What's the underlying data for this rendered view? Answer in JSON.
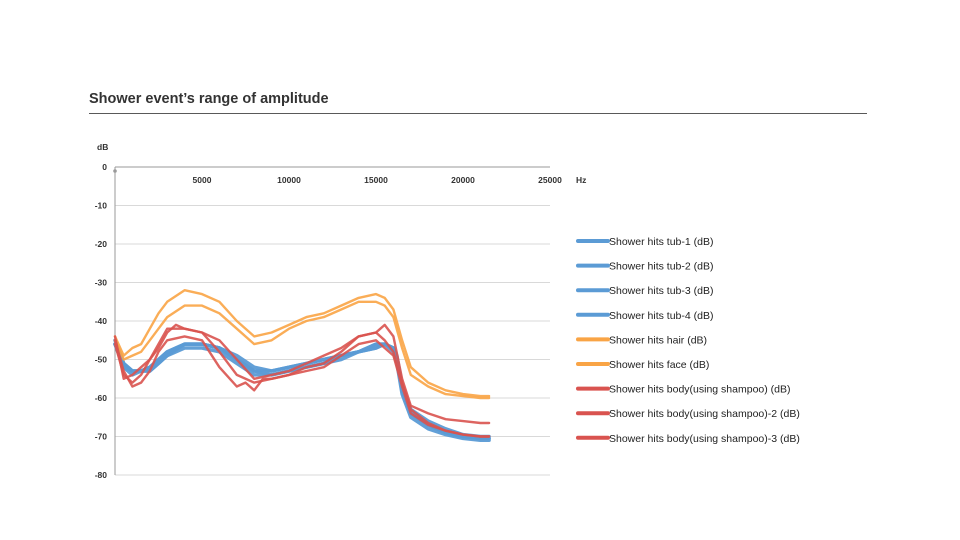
{
  "slide": {
    "title": "Shower event’s range of amplitude"
  },
  "chart_data": {
    "type": "line",
    "title": "",
    "xlabel": "Hz",
    "ylabel": "dB",
    "xlim": [
      0,
      25000
    ],
    "ylim": [
      -80,
      0
    ],
    "xticks": [
      5000,
      10000,
      15000,
      20000,
      25000
    ],
    "yticks": [
      0,
      -10,
      -20,
      -30,
      -40,
      -50,
      -60,
      -70,
      -80
    ],
    "grid": true,
    "legend_position": "right",
    "series": [
      {
        "name": "Shower hits tub-1 (dB)",
        "color": "#5B9BD5",
        "x": [
          0,
          500,
          1000,
          1500,
          2000,
          2500,
          3000,
          4000,
          5000,
          6000,
          7000,
          8000,
          9000,
          10000,
          11000,
          12000,
          13000,
          14000,
          15000,
          15500,
          16000,
          16200,
          16500,
          17000,
          18000,
          19000,
          20000,
          21000,
          21500
        ],
        "values": [
          -46,
          -52,
          -53,
          -53,
          -53,
          -51,
          -49,
          -46,
          -46,
          -47,
          -50,
          -53,
          -54,
          -53,
          -52,
          -51,
          -49,
          -48,
          -47,
          -46,
          -47,
          -50,
          -58,
          -64,
          -67,
          -69,
          -70,
          -70.5,
          -70.5
        ]
      },
      {
        "name": "Shower hits tub-2 (dB)",
        "color": "#5B9BD5",
        "x": [
          0,
          500,
          1000,
          1500,
          2000,
          2500,
          3000,
          4000,
          5000,
          6000,
          7000,
          8000,
          9000,
          10000,
          11000,
          12000,
          13000,
          14000,
          15000,
          15500,
          16000,
          16200,
          16500,
          17000,
          18000,
          19000,
          20000,
          21000,
          21500
        ],
        "values": [
          -45,
          -51,
          -53,
          -53,
          -52,
          -50,
          -48,
          -46,
          -46,
          -47,
          -49,
          -52,
          -53,
          -52,
          -51,
          -50,
          -49,
          -48,
          -46,
          -46,
          -47,
          -49,
          -57,
          -63,
          -66,
          -68,
          -69.5,
          -70,
          -70
        ]
      },
      {
        "name": "Shower hits tub-3 (dB)",
        "color": "#5B9BD5",
        "x": [
          0,
          500,
          1000,
          1500,
          2000,
          2500,
          3000,
          4000,
          5000,
          6000,
          7000,
          8000,
          9000,
          10000,
          11000,
          12000,
          13000,
          14000,
          15000,
          15500,
          16000,
          16200,
          16500,
          17000,
          18000,
          19000,
          20000,
          21000,
          21500
        ],
        "values": [
          -46,
          -52,
          -54,
          -53,
          -53,
          -51,
          -49,
          -47,
          -47,
          -48,
          -51,
          -54,
          -54,
          -53,
          -52,
          -51,
          -50,
          -48,
          -47,
          -46,
          -47,
          -50,
          -58,
          -64,
          -67,
          -69,
          -70,
          -70.5,
          -70.5
        ]
      },
      {
        "name": "Shower hits tub-4 (dB)",
        "color": "#5B9BD5",
        "x": [
          0,
          500,
          1000,
          1500,
          2000,
          2500,
          3000,
          4000,
          5000,
          6000,
          7000,
          8000,
          9000,
          10000,
          11000,
          12000,
          13000,
          14000,
          15000,
          15500,
          16000,
          16200,
          16500,
          17000,
          18000,
          19000,
          20000,
          21000,
          21500
        ],
        "values": [
          -46,
          -51,
          -53,
          -53,
          -52,
          -50,
          -48,
          -46,
          -46,
          -47,
          -50,
          -53,
          -53,
          -52,
          -51,
          -50,
          -49,
          -48,
          -46,
          -46,
          -48,
          -51,
          -59,
          -65,
          -68,
          -69.5,
          -70.5,
          -71,
          -71
        ]
      },
      {
        "name": "Shower hits hair (dB)",
        "color": "#F9A445",
        "x": [
          0,
          500,
          1000,
          1500,
          2000,
          2500,
          3000,
          4000,
          5000,
          6000,
          7000,
          8000,
          9000,
          10000,
          11000,
          12000,
          13000,
          14000,
          15000,
          15500,
          16000,
          16500,
          17000,
          18000,
          19000,
          20000,
          21000,
          21500
        ],
        "values": [
          -44,
          -49,
          -47,
          -46,
          -42,
          -38,
          -35,
          -32,
          -33,
          -35,
          -40,
          -44,
          -43,
          -41,
          -39,
          -38,
          -36,
          -34,
          -33,
          -34,
          -37,
          -45,
          -52,
          -56,
          -58,
          -59,
          -59.5,
          -59.5
        ]
      },
      {
        "name": "Shower hits face (dB)",
        "color": "#F9A445",
        "x": [
          0,
          500,
          1000,
          1500,
          2000,
          2500,
          3000,
          4000,
          5000,
          6000,
          7000,
          8000,
          9000,
          10000,
          11000,
          12000,
          13000,
          14000,
          15000,
          15500,
          16000,
          16500,
          17000,
          18000,
          19000,
          20000,
          21000,
          21500
        ],
        "values": [
          -45,
          -50,
          -49,
          -48,
          -45,
          -42,
          -39,
          -36,
          -36,
          -38,
          -42,
          -46,
          -45,
          -42,
          -40,
          -39,
          -37,
          -35,
          -35,
          -36,
          -39,
          -47,
          -54,
          -57,
          -59,
          -59.5,
          -60,
          -60
        ]
      },
      {
        "name": "Shower hits body(using shampoo) (dB)",
        "color": "#D9534F",
        "x": [
          0,
          500,
          1000,
          1500,
          2000,
          2500,
          3000,
          3500,
          4000,
          5000,
          6000,
          7000,
          8000,
          9000,
          10000,
          11000,
          12000,
          13000,
          14000,
          15000,
          15500,
          16000,
          16500,
          17000,
          18000,
          19000,
          20000,
          21000,
          21500
        ],
        "values": [
          -44,
          -55,
          -54,
          -52,
          -50,
          -47,
          -43,
          -41,
          -42,
          -43,
          -45,
          -50,
          -55,
          -54,
          -53,
          -51,
          -49,
          -47,
          -44,
          -43,
          -41,
          -44,
          -55,
          -62,
          -64,
          -65.5,
          -66,
          -66.5,
          -66.5
        ]
      },
      {
        "name": "Shower hits body(using shampoo)-2 (dB)",
        "color": "#D9534F",
        "x": [
          0,
          500,
          1000,
          1500,
          2000,
          2500,
          3000,
          4000,
          5000,
          6000,
          7000,
          7500,
          8000,
          8500,
          9000,
          10000,
          11000,
          12000,
          13000,
          14000,
          15000,
          15500,
          16000,
          16500,
          17000,
          18000,
          19000,
          20000,
          21000,
          21500
        ],
        "values": [
          -45,
          -53,
          -57,
          -56,
          -53,
          -48,
          -45,
          -44,
          -45,
          -52,
          -57,
          -56,
          -58,
          -55,
          -55,
          -54,
          -53,
          -52,
          -49,
          -46,
          -45,
          -47,
          -49,
          -57,
          -64,
          -67,
          -68.5,
          -69.5,
          -70,
          -70
        ]
      },
      {
        "name": "Shower hits body(using shampoo)-3 (dB)",
        "color": "#D9534F",
        "x": [
          0,
          500,
          1000,
          1500,
          2000,
          2500,
          3000,
          4000,
          5000,
          6000,
          7000,
          8000,
          9000,
          10000,
          11000,
          12000,
          13000,
          14000,
          15000,
          15500,
          16000,
          16500,
          17000,
          18000,
          19000,
          20000,
          21000,
          21500
        ],
        "values": [
          -46,
          -54,
          -56,
          -54,
          -50,
          -46,
          -42,
          -42,
          -43,
          -48,
          -54,
          -56,
          -55,
          -54,
          -52,
          -51,
          -48,
          -44,
          -43,
          -45,
          -48,
          -56,
          -63,
          -66.5,
          -68.5,
          -69.5,
          -70,
          -70
        ]
      }
    ]
  }
}
